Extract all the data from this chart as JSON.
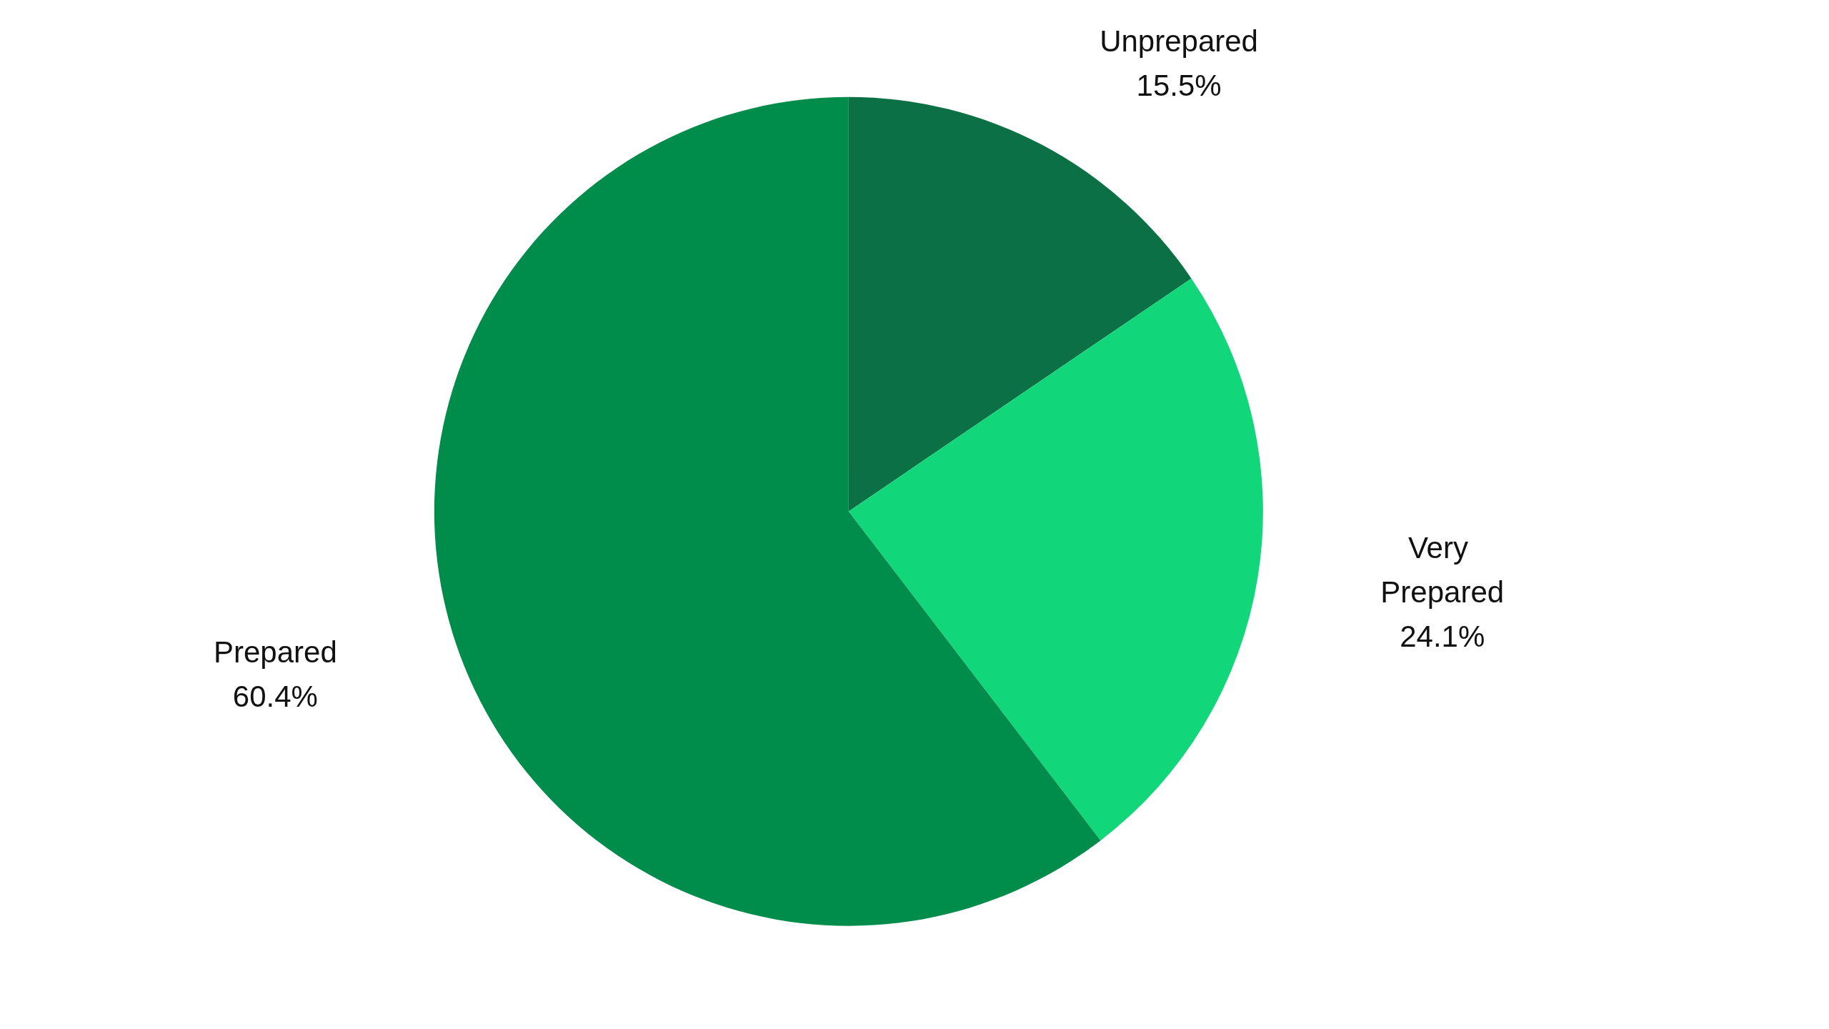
{
  "chart_data": {
    "type": "pie",
    "categories": [
      "Unprepared",
      "Very Prepared",
      "Prepared"
    ],
    "values": [
      15.5,
      24.1,
      60.4
    ],
    "value_labels": [
      "15.5%",
      "24.1%",
      "60.4%"
    ],
    "colors": [
      "#0b7043",
      "#12d67a",
      "#008c4a"
    ]
  }
}
